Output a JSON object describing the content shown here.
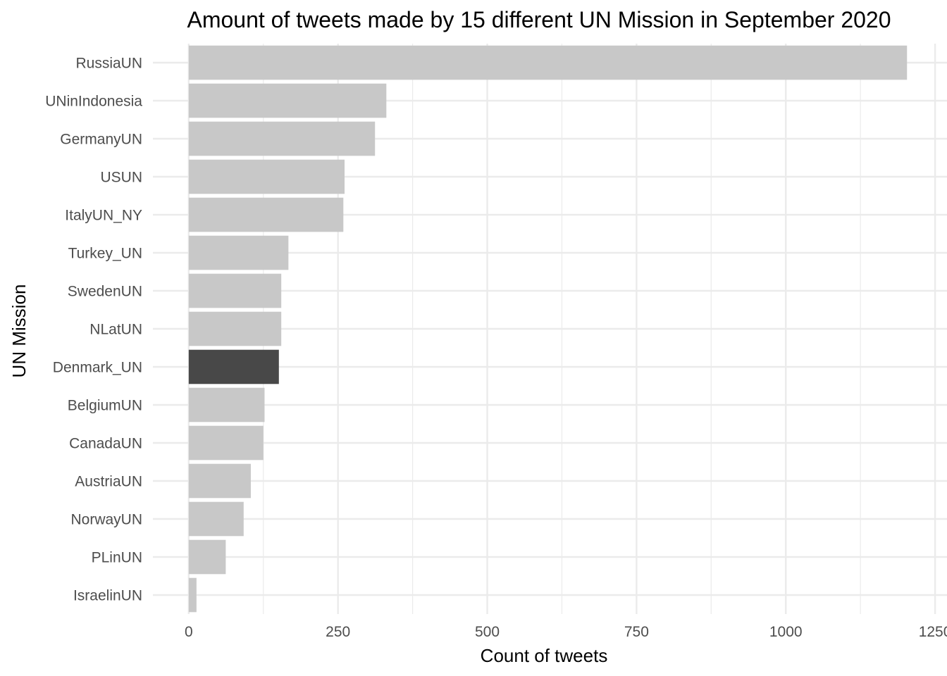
{
  "chart_data": {
    "type": "bar",
    "orientation": "horizontal",
    "title": "Amount of tweets made by 15 different UN Mission in September 2020",
    "xlabel": "Count of tweets",
    "ylabel": "UN Mission",
    "xlim": [
      -60,
      1270
    ],
    "x_ticks": [
      0,
      250,
      500,
      750,
      1000,
      1250
    ],
    "x_tick_labels": [
      "0",
      "250",
      "500",
      "750",
      "1000",
      "1250"
    ],
    "grid": true,
    "legend": "none",
    "categories": [
      "RussiaUN",
      "UNinIndonesia",
      "GermanyUN",
      "USUN",
      "ItalyUN_NY",
      "Turkey_UN",
      "SwedenUN",
      "NLatUN",
      "Denmark_UN",
      "BelgiumUN",
      "CanadaUN",
      "AustriaUN",
      "NorwayUN",
      "PLinUN",
      "IsraelinUN"
    ],
    "values": [
      1203,
      331,
      312,
      261,
      259,
      167,
      155,
      155,
      151,
      127,
      125,
      104,
      92,
      62,
      13
    ],
    "highlight": "Denmark_UN",
    "colors": {
      "bar": "#c8c8c8",
      "highlight": "#484848",
      "grid": "#ebebeb",
      "tick_text": "#4d4d4d"
    }
  }
}
